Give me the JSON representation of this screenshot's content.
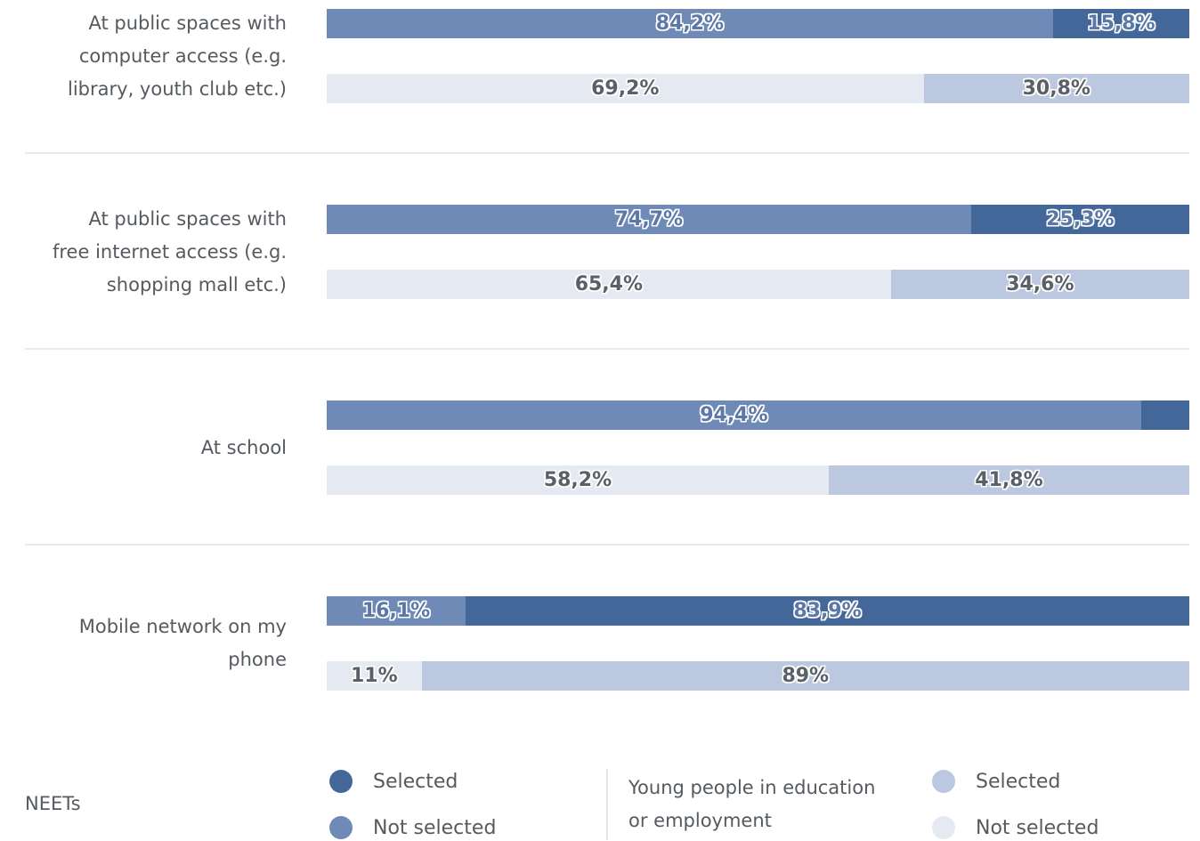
{
  "chart_data": {
    "type": "bar",
    "orientation": "horizontal",
    "stacked": "percent",
    "categories": [
      [
        "At public spaces with",
        "computer access (e.g.",
        "library, youth club etc.)"
      ],
      [
        "At public spaces with",
        "free internet access (e.g.",
        "shopping mall etc.)"
      ],
      [
        "At school"
      ],
      [
        "Mobile network on my",
        "phone"
      ]
    ],
    "groups": [
      {
        "name": "NEETs",
        "segments": [
          {
            "name": "Not selected",
            "color": "#6f8ab7",
            "values": [
              84.2,
              74.7,
              94.4,
              16.1
            ],
            "labels": [
              "84,2%",
              "74,7%",
              "94,4%",
              "16,1%"
            ]
          },
          {
            "name": "Selected",
            "color": "#44679a",
            "values": [
              15.8,
              25.3,
              5.6,
              83.9
            ],
            "labels": [
              "15,8%",
              "25,3%",
              "",
              "83,9%"
            ]
          }
        ]
      },
      {
        "name": "Young people in education or employment",
        "segments": [
          {
            "name": "Not selected",
            "color": "#e4e9f2",
            "values": [
              69.2,
              65.4,
              58.2,
              11
            ],
            "labels": [
              "69,2%",
              "65,4%",
              "58,2%",
              "11%"
            ]
          },
          {
            "name": "Selected",
            "color": "#bcc8df",
            "values": [
              30.8,
              34.6,
              41.8,
              89
            ],
            "labels": [
              "30,8%",
              "34,6%",
              "41,8%",
              "89%"
            ]
          }
        ]
      }
    ],
    "xlim": [
      0,
      100
    ],
    "grid": false,
    "legend_position": "bottom"
  },
  "legend": {
    "groups": [
      {
        "title_lines": [
          "NEETs"
        ],
        "items": [
          {
            "label": "Selected",
            "color": "#44679a"
          },
          {
            "label": "Not selected",
            "color": "#6f8ab7"
          }
        ]
      },
      {
        "title_lines": [
          "Young people in education",
          "or employment"
        ],
        "items": [
          {
            "label": "Selected",
            "color": "#bcc8df"
          },
          {
            "label": "Not selected",
            "color": "#e4e9f2"
          }
        ]
      }
    ]
  }
}
